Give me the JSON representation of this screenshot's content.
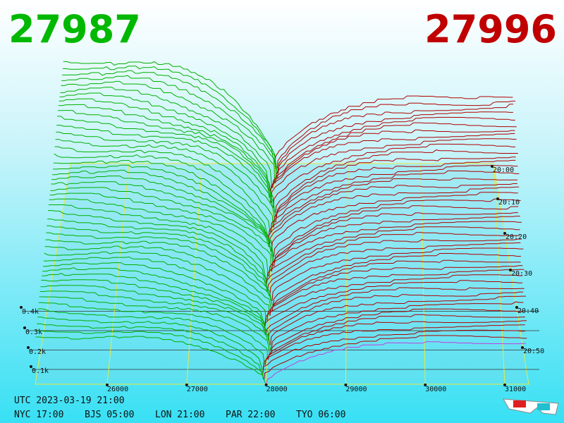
{
  "header": {
    "bid": "27987",
    "ask": "27996"
  },
  "axes": {
    "price_labels": [
      "26000",
      "27000",
      "28000",
      "29000",
      "30000",
      "31000"
    ],
    "depth_labels": [
      "0.1k",
      "0.2k",
      "0.3k",
      "0.4k"
    ],
    "time_labels": [
      "20:00",
      "20:10",
      "20:20",
      "20:30",
      "20:40",
      "20:50"
    ]
  },
  "footer": {
    "utc": "UTC 2023-03-19 21:00",
    "cities": [
      "NYC 17:00",
      "BJS 05:00",
      "LON 21:00",
      "PAR 22:00",
      "TYO 06:00"
    ]
  }
}
